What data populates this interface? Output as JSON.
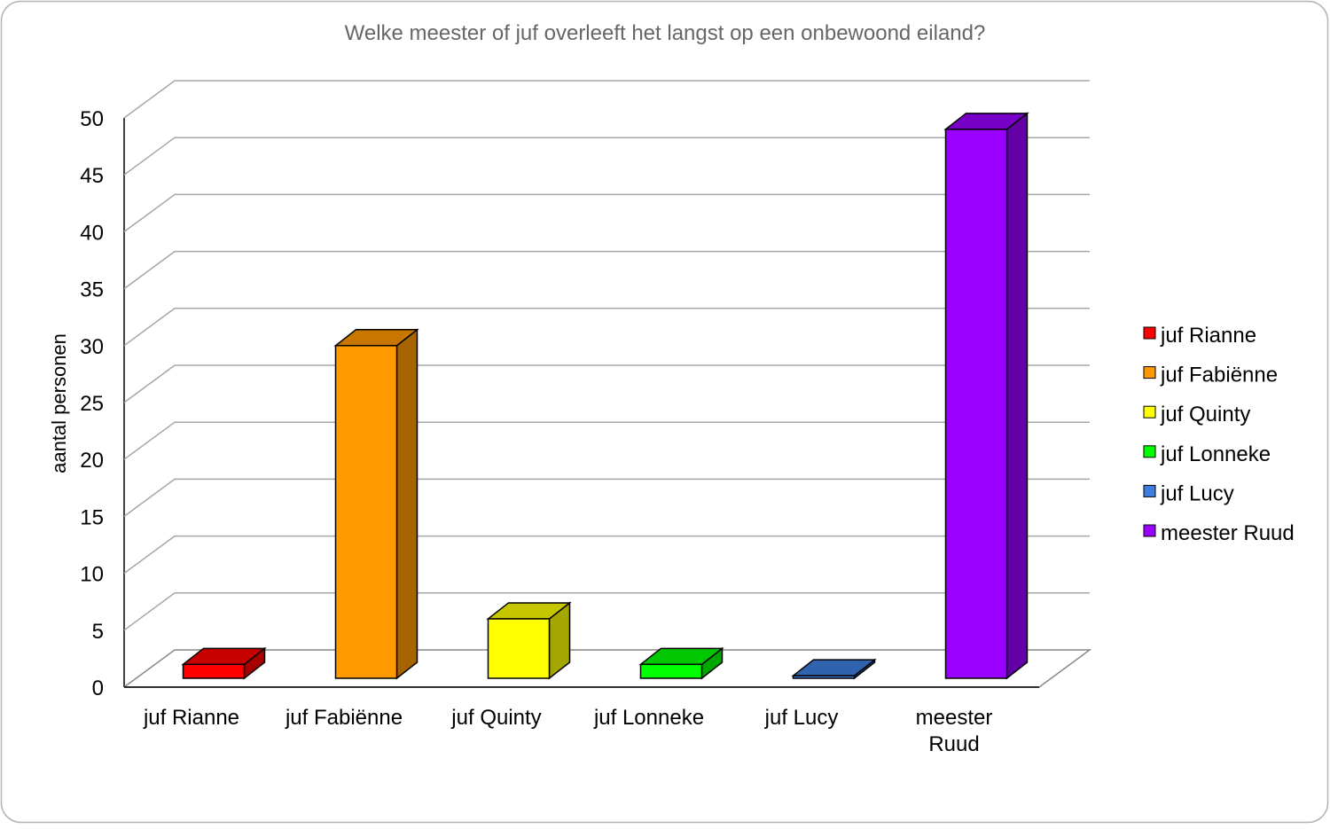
{
  "chart_data": {
    "type": "bar",
    "title": "Welke meester of juf overleeft het langst op een onbewoond eiland?",
    "xlabel": "",
    "ylabel": "aantal personen",
    "ylim": [
      0,
      50
    ],
    "yticks": [
      0,
      5,
      10,
      15,
      20,
      25,
      30,
      35,
      40,
      45,
      50
    ],
    "grid": true,
    "three_d": true,
    "legend_position": "right",
    "categories": [
      "juf Rianne",
      "juf Fabiënne",
      "juf Quinty",
      "juf Lonneke",
      "juf Lucy",
      "meester Ruud"
    ],
    "category_lines": [
      [
        "juf Rianne"
      ],
      [
        "juf Fabiënne"
      ],
      [
        "juf Quinty"
      ],
      [
        "juf Lonneke"
      ],
      [
        "juf Lucy"
      ],
      [
        "meester",
        "Ruud"
      ]
    ],
    "values": [
      2,
      30,
      6,
      2,
      1,
      49
    ],
    "colors": [
      "#ff0000",
      "#ff9900",
      "#ffff00",
      "#00ff00",
      "#3d7ddf",
      "#9900ff"
    ],
    "legend": [
      "juf Rianne",
      "juf Fabiënne",
      "juf Quinty",
      "juf Lonneke",
      "juf Lucy",
      "meester Ruud"
    ]
  }
}
